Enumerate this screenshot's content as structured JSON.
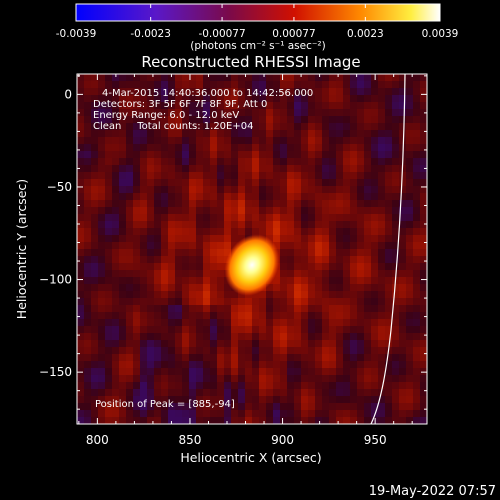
{
  "chart_data": {
    "type": "heatmap",
    "title": "Reconstructed RHESSI Image",
    "xlabel": "Heliocentric X (arcsec)",
    "ylabel": "Heliocentric Y (arcsec)",
    "xlim": [
      789,
      978
    ],
    "ylim": [
      -178,
      11
    ],
    "x_ticks": [
      800,
      850,
      900,
      950
    ],
    "y_ticks": [
      0,
      -50,
      -100,
      -150
    ],
    "colorbar": {
      "min": -0.0039,
      "max": 0.0039,
      "tick_values": [
        -0.0039,
        -0.0023,
        -0.00077,
        0.00077,
        0.0023,
        0.0039
      ],
      "tick_labels": [
        "-0.0039",
        "-0.0023",
        "-0.00077",
        "0.00077",
        "0.0023",
        "0.0039"
      ],
      "colormap": "blue-purple-red-orange-yellow-white",
      "unit_label": "(photons cm⁻² s⁻¹ asec⁻²)"
    },
    "annotations": [
      "4-Mar-2015 14:40:36.000 to 14:42:56.000",
      "Detectors: 3F 5F 6F 7F 8F 9F, Att 0",
      "Energy Range: 6.0 - 12.0 keV",
      "Clean     Total counts: 1.20E+04"
    ],
    "peak_label": "Position of Peak = [885,-94]",
    "peak": {
      "x": 885,
      "y": -94
    },
    "limb_color": "#ffffff",
    "grid": false
  },
  "footer": {
    "timestamp": "19-May-2022 07:57"
  }
}
